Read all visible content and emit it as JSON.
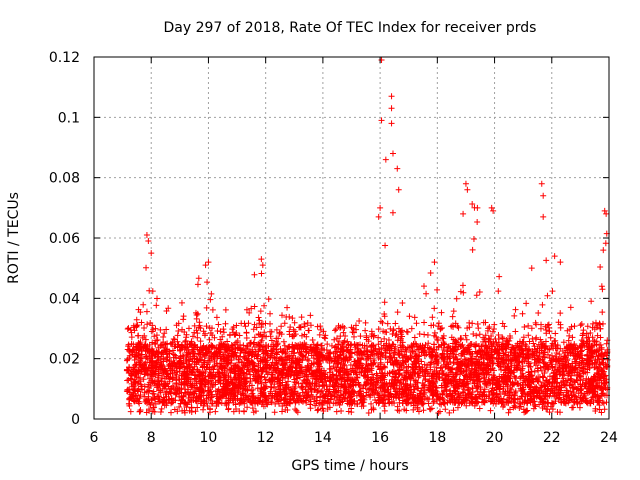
{
  "chart_data": {
    "type": "scatter",
    "title": "Day 297 of 2018, Rate Of TEC Index for receiver prds",
    "xlabel": "GPS time / hours",
    "ylabel": "ROTI / TECUs",
    "xlim": [
      6,
      24
    ],
    "ylim": [
      0,
      0.12
    ],
    "xticks": [
      6,
      8,
      10,
      12,
      14,
      16,
      18,
      20,
      22,
      24
    ],
    "xtick_labels": [
      "6",
      "8",
      "10",
      "12",
      "14",
      "16",
      "18",
      "20",
      "22",
      "24"
    ],
    "yticks": [
      0,
      0.02,
      0.04,
      0.06,
      0.08,
      0.1,
      0.12
    ],
    "ytick_labels": [
      "0",
      "0.02",
      "0.04",
      "0.06",
      "0.08",
      "0.1",
      "0.12"
    ],
    "grid": true,
    "marker": "+",
    "color": "#ff0000",
    "data_range_hours": [
      7.15,
      23.95
    ],
    "baseline_roti": [
      0.005,
      0.025
    ],
    "envelope": [
      [
        7.2,
        0.032
      ],
      [
        7.5,
        0.034
      ],
      [
        7.8,
        0.061
      ],
      [
        7.95,
        0.056
      ],
      [
        8.2,
        0.04
      ],
      [
        8.5,
        0.038
      ],
      [
        8.8,
        0.047
      ],
      [
        9.2,
        0.04
      ],
      [
        9.5,
        0.045
      ],
      [
        9.9,
        0.05
      ],
      [
        10.3,
        0.044
      ],
      [
        10.8,
        0.034
      ],
      [
        11.2,
        0.033
      ],
      [
        11.6,
        0.05
      ],
      [
        11.9,
        0.053
      ],
      [
        12.2,
        0.035
      ],
      [
        12.6,
        0.038
      ],
      [
        13.0,
        0.04
      ],
      [
        13.5,
        0.038
      ],
      [
        14.0,
        0.026
      ],
      [
        14.5,
        0.03
      ],
      [
        15.0,
        0.032
      ],
      [
        15.5,
        0.033
      ],
      [
        15.8,
        0.04
      ],
      [
        16.0,
        0.07
      ],
      [
        16.3,
        0.062
      ],
      [
        16.6,
        0.083
      ],
      [
        16.9,
        0.05
      ],
      [
        17.3,
        0.04
      ],
      [
        17.8,
        0.052
      ],
      [
        18.3,
        0.03
      ],
      [
        18.8,
        0.045
      ],
      [
        19.0,
        0.078
      ],
      [
        19.4,
        0.07
      ],
      [
        19.8,
        0.07
      ],
      [
        20.2,
        0.05
      ],
      [
        20.6,
        0.038
      ],
      [
        21.0,
        0.035
      ],
      [
        21.4,
        0.05
      ],
      [
        21.7,
        0.078
      ],
      [
        22.0,
        0.054
      ],
      [
        22.4,
        0.04
      ],
      [
        22.8,
        0.038
      ],
      [
        23.3,
        0.035
      ],
      [
        23.7,
        0.069
      ],
      [
        23.95,
        0.068
      ]
    ],
    "outliers": [
      [
        16.05,
        0.119
      ],
      [
        16.05,
        0.099
      ],
      [
        16.4,
        0.107
      ],
      [
        16.4,
        0.103
      ],
      [
        16.4,
        0.098
      ],
      [
        16.2,
        0.086
      ],
      [
        16.45,
        0.088
      ],
      [
        16.6,
        0.083
      ],
      [
        16.65,
        0.076
      ],
      [
        16.0,
        0.07
      ],
      [
        15.95,
        0.067
      ],
      [
        19.0,
        0.078
      ],
      [
        19.05,
        0.076
      ],
      [
        19.9,
        0.07
      ],
      [
        19.95,
        0.069
      ],
      [
        19.4,
        0.07
      ],
      [
        21.65,
        0.078
      ],
      [
        21.7,
        0.074
      ],
      [
        21.7,
        0.067
      ],
      [
        23.85,
        0.069
      ],
      [
        23.9,
        0.068
      ],
      [
        23.8,
        0.056
      ],
      [
        23.75,
        0.044
      ],
      [
        7.85,
        0.061
      ],
      [
        7.9,
        0.059
      ],
      [
        8.0,
        0.055
      ],
      [
        9.9,
        0.051
      ],
      [
        10.0,
        0.052
      ],
      [
        11.85,
        0.053
      ],
      [
        11.9,
        0.051
      ],
      [
        22.1,
        0.054
      ],
      [
        21.3,
        0.05
      ],
      [
        22.3,
        0.052
      ],
      [
        18.9,
        0.068
      ],
      [
        17.9,
        0.052
      ]
    ]
  }
}
